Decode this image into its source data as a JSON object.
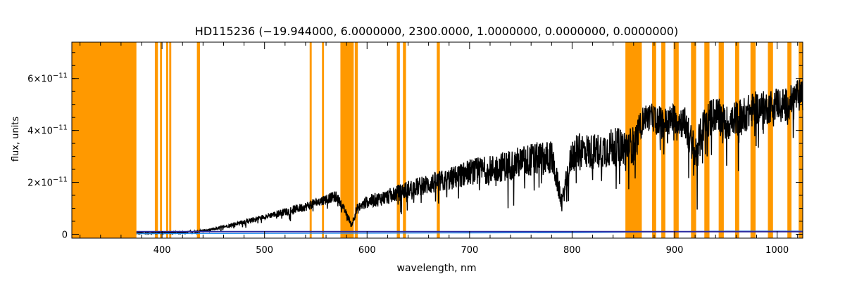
{
  "chart_data": {
    "type": "line",
    "title": "HD115236   (−19.944000, 6.0000000, 2300.0000, 1.0000000, 0.0000000, 0.0000000)",
    "xlabel": "wavelength, nm",
    "ylabel": "flux, units",
    "xlim": [
      312,
      1025
    ],
    "ylim": [
      -1.5e-12,
      7.4e-11
    ],
    "grid": false,
    "legend": "none",
    "x_ticks": [
      400,
      500,
      600,
      700,
      800,
      900,
      1000
    ],
    "x_tick_labels": [
      "400",
      "500",
      "600",
      "700",
      "800",
      "900",
      "1000"
    ],
    "y_ticks": [
      0,
      2e-11,
      4e-11,
      6e-11
    ],
    "y_tick_labels": [
      {
        "mantissa": "0",
        "exponent": ""
      },
      {
        "mantissa": "2×10",
        "exponent": "−11"
      },
      {
        "mantissa": "4×10",
        "exponent": "−11"
      },
      {
        "mantissa": "6×10",
        "exponent": "−11"
      }
    ],
    "masked_regions": [
      [
        312,
        375
      ],
      [
        393,
        396
      ],
      [
        398,
        400
      ],
      [
        404,
        406
      ],
      [
        407,
        409
      ],
      [
        434,
        437
      ],
      [
        544,
        546
      ],
      [
        556,
        558
      ],
      [
        574,
        587
      ],
      [
        588,
        591
      ],
      [
        629,
        632
      ],
      [
        635,
        638
      ],
      [
        668,
        671
      ],
      [
        852,
        868
      ],
      [
        878,
        882
      ],
      [
        887,
        891
      ],
      [
        899,
        904
      ],
      [
        916,
        921
      ],
      [
        929,
        934
      ],
      [
        943,
        948
      ],
      [
        959,
        963
      ],
      [
        974,
        979
      ],
      [
        991,
        996
      ],
      [
        1010,
        1014
      ],
      [
        1021,
        1025
      ]
    ],
    "series": [
      {
        "color": "#000000",
        "role": "flux",
        "x": [
          375,
          400,
          430,
          450,
          470,
          500,
          520,
          540,
          560,
          570,
          575,
          585,
          590,
          600,
          620,
          640,
          660,
          680,
          700,
          720,
          740,
          760,
          780,
          790,
          800,
          810,
          820,
          840,
          850,
          860,
          870,
          880,
          890,
          900,
          910,
          920,
          930,
          940,
          950,
          960,
          970,
          980,
          990,
          1000,
          1010,
          1020,
          1025
        ],
        "y": [
          5e-13,
          5e-13,
          1e-12,
          2e-12,
          4e-12,
          7e-12,
          9e-12,
          1.1e-11,
          1.4e-11,
          1.5e-11,
          1.2e-11,
          4e-12,
          1e-11,
          1.3e-11,
          1.5e-11,
          1.8e-11,
          2e-11,
          2.2e-11,
          2.5e-11,
          2.6e-11,
          2.8e-11,
          3e-11,
          3.1e-11,
          1.3e-11,
          3.2e-11,
          3.4e-11,
          3.3e-11,
          3.5e-11,
          3.5e-11,
          3.6e-11,
          4.6e-11,
          4.6e-11,
          4.4e-11,
          4.6e-11,
          4.4e-11,
          3.2e-11,
          4.5e-11,
          4.8e-11,
          4.4e-11,
          4.6e-11,
          4.8e-11,
          5e-11,
          5e-11,
          5.2e-11,
          5.1e-11,
          5.5e-11,
          5.4e-11
        ],
        "noise": [
          5e-13,
          5e-13,
          8e-13,
          1e-12,
          1.5e-12,
          2e-12,
          3e-12,
          3.5e-12,
          4e-12,
          4e-12,
          3e-12,
          2e-12,
          4e-12,
          5e-12,
          6e-12,
          7e-12,
          8e-12,
          9e-12,
          1e-11,
          1.1e-11,
          1.2e-11,
          1.3e-11,
          1.3e-11,
          6e-12,
          1.3e-11,
          1.4e-11,
          1.4e-11,
          1.5e-11,
          1.5e-11,
          1.4e-11,
          1e-11,
          1.1e-11,
          1.2e-11,
          1.2e-11,
          1.3e-11,
          1.6e-11,
          1.4e-11,
          1.4e-11,
          1.4e-11,
          1.4e-11,
          1.4e-11,
          1.3e-11,
          1.3e-11,
          1.3e-11,
          1.3e-11,
          1.3e-11,
          1.3e-11
        ]
      },
      {
        "color": "#1f8ff0",
        "role": "error",
        "x": [
          375,
          500,
          600,
          700,
          800,
          850,
          900,
          950,
          1000,
          1025
        ],
        "y": [
          2e-13,
          3e-13,
          4e-13,
          5e-13,
          6e-13,
          8e-13,
          1e-12,
          1.2e-12,
          1.2e-12,
          1.2e-12
        ]
      },
      {
        "color": "#2a2aa0",
        "role": "model",
        "x": [
          375,
          430,
          500,
          600,
          700,
          800,
          900,
          1025
        ],
        "y": [
          1e-12,
          1e-12,
          1e-12,
          1e-12,
          1e-12,
          1e-12,
          1e-12,
          1e-12
        ]
      }
    ],
    "colors": {
      "mask": "#ff9900",
      "axis": "#000000",
      "background": "#ffffff"
    }
  }
}
